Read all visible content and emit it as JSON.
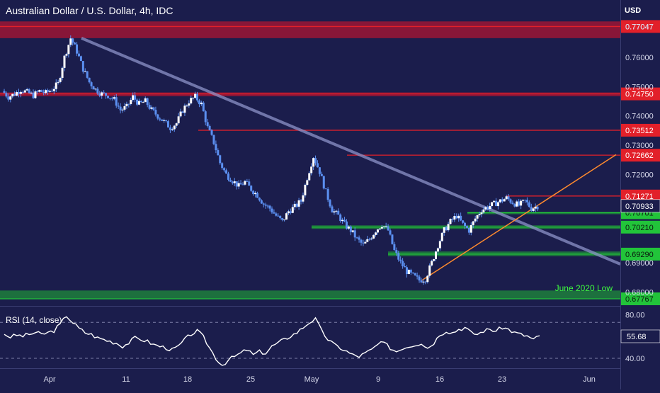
{
  "header": {
    "title": "Australian Dollar / U.S. Dollar, 4h, IDC",
    "currency": "USD"
  },
  "colors": {
    "background": "#1b1d4c",
    "candle": "#5b8ff0",
    "resistance": "#e2202a",
    "resistance_zone": "#9b1535",
    "support": "#22c43a",
    "support_zone": "#1d7f3c",
    "trendline_down": "#8d93c9",
    "trendline_up": "#ff8a2e",
    "rsi_line": "#ffffff",
    "current_price": "#ffffff"
  },
  "chart_data": {
    "type": "candlestick",
    "y_scale": {
      "min": 0.6755,
      "max": 0.7795
    },
    "x_axis_ticks": [
      "Apr",
      "11",
      "18",
      "25",
      "May",
      "9",
      "16",
      "23",
      "Jun"
    ],
    "y_axis_ticks": [
      "0.77047",
      "0.76000",
      "0.75000",
      "0.74000",
      "0.73000",
      "0.72000",
      "0.69000",
      "0.68000"
    ],
    "series_close_path": [
      0.7485,
      0.7465,
      0.7475,
      0.749,
      0.748,
      0.747,
      0.7485,
      0.7478,
      0.749,
      0.751,
      0.76,
      0.7665,
      0.762,
      0.756,
      0.7515,
      0.749,
      0.7475,
      0.747,
      0.7455,
      0.742,
      0.743,
      0.7465,
      0.744,
      0.745,
      0.742,
      0.74,
      0.738,
      0.736,
      0.7375,
      0.742,
      0.745,
      0.7465,
      0.744,
      0.736,
      0.731,
      0.724,
      0.72,
      0.718,
      0.716,
      0.7175,
      0.715,
      0.713,
      0.71,
      0.7085,
      0.706,
      0.704,
      0.7075,
      0.709,
      0.711,
      0.719,
      0.7262,
      0.721,
      0.714,
      0.708,
      0.706,
      0.703,
      0.701,
      0.698,
      0.696,
      0.698,
      0.701,
      0.703,
      0.701,
      0.694,
      0.69,
      0.687,
      0.6855,
      0.684,
      0.6845,
      0.69,
      0.696,
      0.701,
      0.704,
      0.706,
      0.703,
      0.701,
      0.705,
      0.708,
      0.709,
      0.71,
      0.711,
      0.712,
      0.7105,
      0.7095,
      0.711,
      0.7085,
      0.7093
    ],
    "levels": [
      {
        "label": "0.77047",
        "value": 0.77047,
        "kind": "resistance"
      },
      {
        "label": "0.74750",
        "value": 0.7475,
        "kind": "resistance"
      },
      {
        "label": "0.73512",
        "value": 0.73512,
        "kind": "resistance"
      },
      {
        "label": "0.72662",
        "value": 0.72662,
        "kind": "resistance"
      },
      {
        "label": "0.71271",
        "value": 0.71271,
        "kind": "resistance"
      },
      {
        "label": "0.70701",
        "value": 0.70701,
        "kind": "support"
      },
      {
        "label": "0.70210",
        "value": 0.7021,
        "kind": "support"
      },
      {
        "label": "0.69290",
        "value": 0.6929,
        "kind": "support"
      },
      {
        "label": "0.67767",
        "value": 0.67767,
        "kind": "support"
      }
    ],
    "current_price": {
      "label": "0.70933",
      "value": 0.70933
    },
    "annotations": [
      {
        "text": "June 2020 Low"
      }
    ],
    "rsi": {
      "label": "RSI (14, close)",
      "current_label": "55.68",
      "current_value": 55.68,
      "y_scale": {
        "min": 20,
        "max": 88
      },
      "ticks": [
        "80.00",
        "40.00"
      ],
      "path": [
        58,
        55,
        57,
        56,
        58,
        60,
        58,
        60,
        62,
        70,
        80,
        72,
        65,
        60,
        58,
        54,
        52,
        50,
        48,
        44,
        48,
        54,
        52,
        50,
        46,
        44,
        42,
        40,
        44,
        52,
        58,
        62,
        55,
        42,
        30,
        22,
        28,
        32,
        36,
        40,
        34,
        38,
        36,
        44,
        48,
        52,
        56,
        60,
        66,
        72,
        76,
        62,
        52,
        46,
        42,
        38,
        34,
        32,
        36,
        40,
        46,
        48,
        42,
        38,
        42,
        44,
        46,
        48,
        42,
        48,
        58,
        62,
        60,
        64,
        66,
        60,
        58,
        62,
        64,
        62,
        66,
        64,
        60,
        58,
        56,
        52,
        55.68
      ]
    }
  }
}
